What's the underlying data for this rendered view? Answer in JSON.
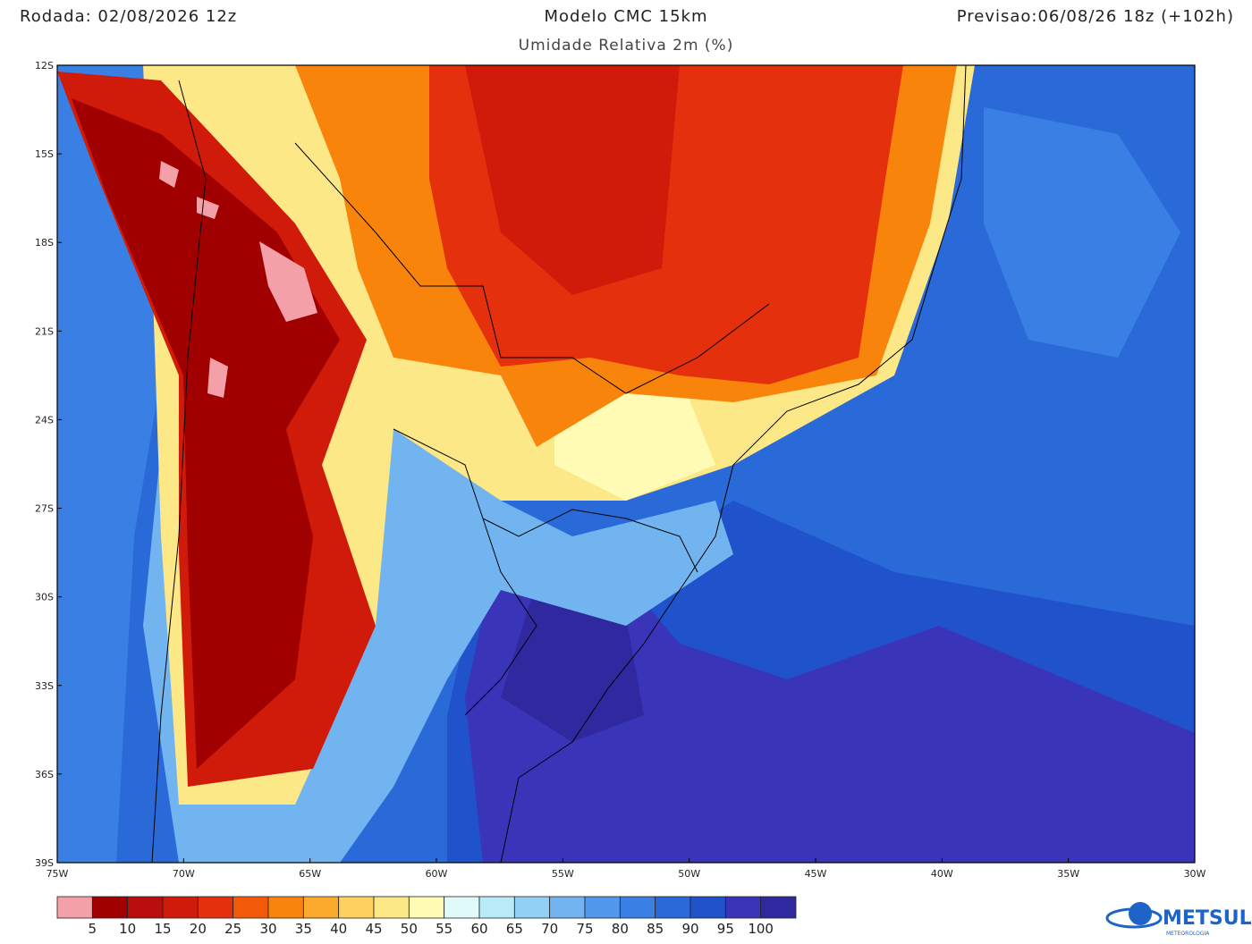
{
  "header": {
    "left": "Rodada: 02/08/2026 12z",
    "center": "Modelo CMC 15km",
    "right": "Previsao:06/08/26 18z (+102h)",
    "subtitle": "Umidade Relativa 2m (%)"
  },
  "map": {
    "lat_labels": [
      "12S",
      "15S",
      "18S",
      "21S",
      "24S",
      "27S",
      "30S",
      "33S",
      "36S",
      "39S"
    ],
    "lon_labels": [
      "75W",
      "70W",
      "65W",
      "60W",
      "55W",
      "50W",
      "45W",
      "40W",
      "35W",
      "30W"
    ]
  },
  "colorbar": {
    "colors": [
      "#f4a0a8",
      "#a00000",
      "#b80e0e",
      "#d01a0a",
      "#e4300c",
      "#f25a0a",
      "#f8840c",
      "#fbaa2c",
      "#fdd060",
      "#fde888",
      "#fffab4",
      "#e0fafa",
      "#b8eaf8",
      "#92d0f4",
      "#72b4f0",
      "#5298ec",
      "#3a80e4",
      "#2a6ad8",
      "#2052cc",
      "#3a34b8",
      "#30289e"
    ],
    "labels": [
      "5",
      "10",
      "15",
      "20",
      "25",
      "30",
      "35",
      "40",
      "45",
      "50",
      "55",
      "60",
      "65",
      "70",
      "75",
      "80",
      "85",
      "90",
      "95",
      "100"
    ]
  },
  "logo": {
    "name": "METSUL",
    "tagline": "METEOROLOGIA"
  }
}
